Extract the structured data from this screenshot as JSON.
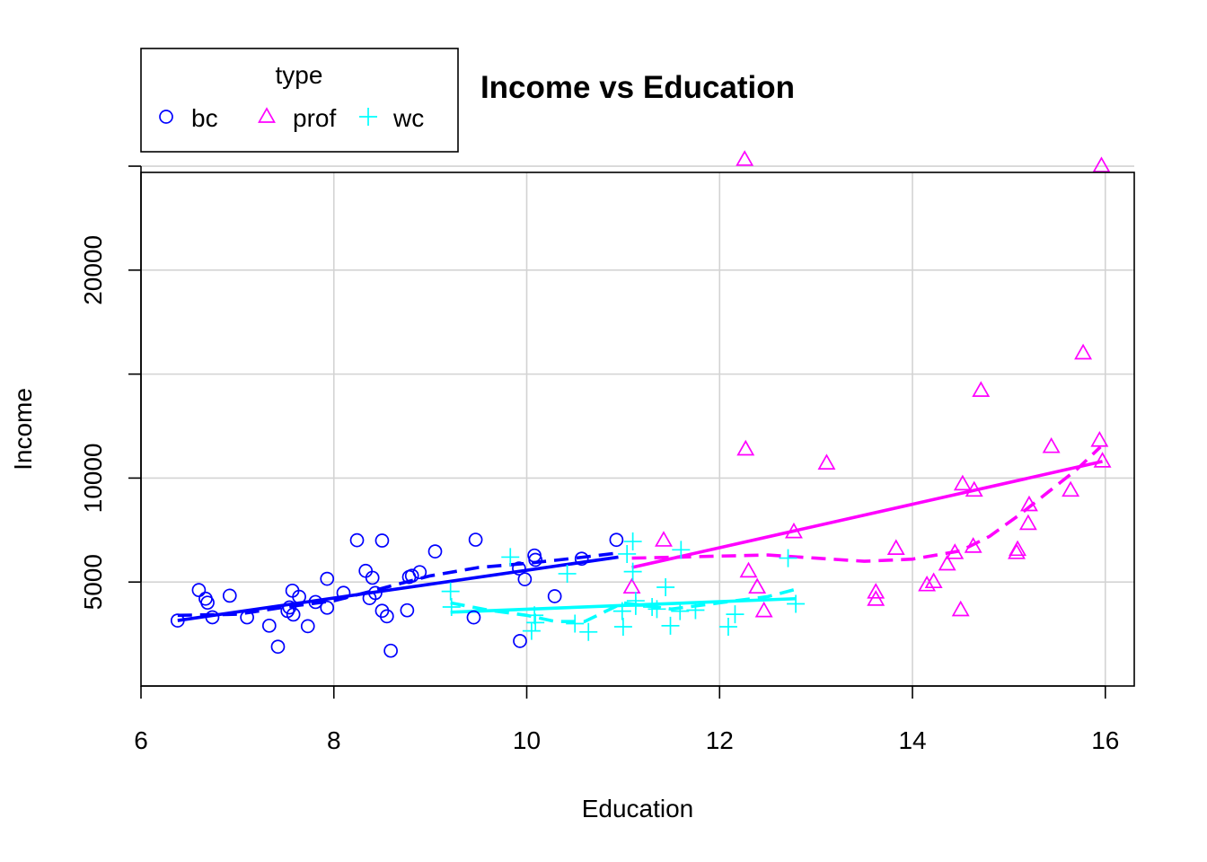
{
  "chart_data": {
    "type": "scatter",
    "title": "Income vs Education",
    "xlabel": "Education",
    "ylabel": "Income",
    "xlim": [
      6,
      16.3
    ],
    "ylim": [
      0,
      24700
    ],
    "x_ticks": [
      6,
      8,
      10,
      12,
      14,
      16
    ],
    "x_tick_labels": [
      "6",
      "8",
      "10",
      "12",
      "14",
      "16"
    ],
    "y_ticks": [
      5000,
      10000,
      15000,
      20000,
      25000
    ],
    "y_tick_labels": [
      "5000",
      "10000",
      "",
      "20000",
      ""
    ],
    "grid": true,
    "legend": {
      "title": "type",
      "position": "top-left, outside plot",
      "entries": [
        {
          "label": "bc",
          "symbol": "circle",
          "color": "#0000ff"
        },
        {
          "label": "prof",
          "symbol": "triangle",
          "color": "#ff00ff"
        },
        {
          "label": "wc",
          "symbol": "plus",
          "color": "#00ffff"
        }
      ]
    },
    "series": [
      {
        "name": "bc",
        "color": "#0000ff",
        "symbol": "circle",
        "points": [
          [
            6.38,
            3148
          ],
          [
            6.6,
            4614
          ],
          [
            6.67,
            4199
          ],
          [
            6.69,
            4008
          ],
          [
            6.74,
            3305
          ],
          [
            6.92,
            4344
          ],
          [
            7.1,
            3301
          ],
          [
            7.33,
            2901
          ],
          [
            7.42,
            1890
          ],
          [
            7.52,
            3609
          ],
          [
            7.54,
            3778
          ],
          [
            7.57,
            4585
          ],
          [
            7.58,
            3437
          ],
          [
            7.64,
            4290
          ],
          [
            7.73,
            2877
          ],
          [
            7.81,
            4040
          ],
          [
            7.93,
            3764
          ],
          [
            7.93,
            5156
          ],
          [
            8.1,
            4480
          ],
          [
            8.24,
            7012
          ],
          [
            8.33,
            5538
          ],
          [
            8.37,
            4226
          ],
          [
            8.4,
            5207
          ],
          [
            8.43,
            4474
          ],
          [
            8.5,
            6994
          ],
          [
            8.5,
            3618
          ],
          [
            8.55,
            3353
          ],
          [
            8.59,
            1697
          ],
          [
            8.76,
            3641
          ],
          [
            8.78,
            5241
          ],
          [
            8.81,
            5302
          ],
          [
            8.89,
            5476
          ],
          [
            9.05,
            6473
          ],
          [
            9.45,
            3299
          ],
          [
            9.47,
            7037
          ],
          [
            9.92,
            5651
          ],
          [
            9.93,
            2165
          ],
          [
            9.98,
            5134
          ],
          [
            10.08,
            6275
          ],
          [
            10.09,
            6068
          ],
          [
            10.29,
            4318
          ],
          [
            10.57,
            6122
          ],
          [
            10.93,
            7029
          ]
        ],
        "fit_line": [
          [
            6.38,
            3150
          ],
          [
            10.95,
            6200
          ]
        ],
        "smooth": [
          [
            6.38,
            3400
          ],
          [
            7.0,
            3450
          ],
          [
            7.5,
            3800
          ],
          [
            8.0,
            4100
          ],
          [
            8.5,
            4700
          ],
          [
            9.0,
            5300
          ],
          [
            9.5,
            5700
          ],
          [
            10.0,
            5900
          ],
          [
            10.5,
            6150
          ],
          [
            10.95,
            6400
          ]
        ]
      },
      {
        "name": "prof",
        "color": "#ff00ff",
        "symbol": "triangle",
        "points": [
          [
            11.09,
            4741
          ],
          [
            11.42,
            6999
          ],
          [
            12.26,
            25308
          ],
          [
            12.27,
            11377
          ],
          [
            12.3,
            5511
          ],
          [
            12.39,
            4741
          ],
          [
            12.46,
            3600
          ],
          [
            12.77,
            7400
          ],
          [
            13.11,
            10705
          ],
          [
            13.62,
            4500
          ],
          [
            13.62,
            4150
          ],
          [
            13.83,
            6600
          ],
          [
            14.15,
            4850
          ],
          [
            14.22,
            5000
          ],
          [
            14.36,
            5850
          ],
          [
            14.44,
            6400
          ],
          [
            14.5,
            3650
          ],
          [
            14.52,
            9700
          ],
          [
            14.63,
            6700
          ],
          [
            14.64,
            9400
          ],
          [
            14.71,
            14200
          ],
          [
            15.08,
            6400
          ],
          [
            15.09,
            6550
          ],
          [
            15.2,
            7800
          ],
          [
            15.21,
            8700
          ],
          [
            15.44,
            11500
          ],
          [
            15.64,
            9400
          ],
          [
            15.77,
            16000
          ],
          [
            15.94,
            11800
          ],
          [
            15.96,
            25000
          ],
          [
            15.97,
            10800
          ]
        ],
        "fit_line": [
          [
            11.09,
            5700
          ],
          [
            15.97,
            10800
          ]
        ],
        "smooth": [
          [
            11.09,
            6150
          ],
          [
            11.6,
            6200
          ],
          [
            12.0,
            6250
          ],
          [
            12.5,
            6300
          ],
          [
            13.0,
            6150
          ],
          [
            13.5,
            6000
          ],
          [
            14.0,
            6100
          ],
          [
            14.5,
            6500
          ],
          [
            14.8,
            7200
          ],
          [
            15.1,
            8200
          ],
          [
            15.4,
            9300
          ],
          [
            15.7,
            10400
          ],
          [
            15.95,
            11500
          ]
        ]
      },
      {
        "name": "wc",
        "color": "#00ffff",
        "symbol": "plus",
        "points": [
          [
            9.21,
            4550
          ],
          [
            9.22,
            3800
          ],
          [
            9.83,
            6200
          ],
          [
            10.05,
            2650
          ],
          [
            10.08,
            3400
          ],
          [
            10.09,
            3050
          ],
          [
            10.42,
            5400
          ],
          [
            10.5,
            3000
          ],
          [
            10.64,
            2600
          ],
          [
            10.99,
            3600
          ],
          [
            11.0,
            2850
          ],
          [
            11.04,
            6350
          ],
          [
            11.1,
            5500
          ],
          [
            11.1,
            6950
          ],
          [
            11.13,
            4100
          ],
          [
            11.13,
            3850
          ],
          [
            11.3,
            3800
          ],
          [
            11.35,
            3700
          ],
          [
            11.44,
            4750
          ],
          [
            11.49,
            2900
          ],
          [
            11.59,
            3600
          ],
          [
            11.6,
            6550
          ],
          [
            11.75,
            3650
          ],
          [
            12.09,
            2850
          ],
          [
            12.16,
            3450
          ],
          [
            12.71,
            6150
          ],
          [
            12.79,
            3950
          ]
        ],
        "fit_line": [
          [
            9.21,
            3550
          ],
          [
            12.79,
            4200
          ]
        ],
        "smooth": [
          [
            9.21,
            4000
          ],
          [
            9.6,
            3650
          ],
          [
            10.0,
            3400
          ],
          [
            10.3,
            3100
          ],
          [
            10.6,
            3100
          ],
          [
            11.0,
            4000
          ],
          [
            11.5,
            3700
          ],
          [
            12.0,
            4000
          ],
          [
            12.5,
            4300
          ],
          [
            12.79,
            4650
          ]
        ]
      }
    ]
  }
}
